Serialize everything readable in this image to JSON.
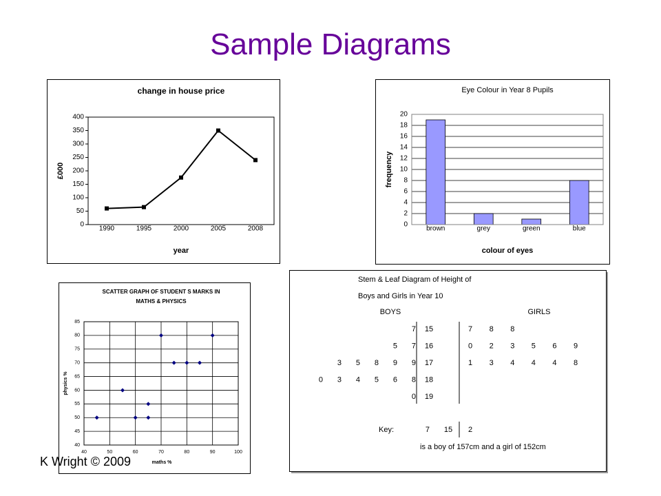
{
  "title": "Sample Diagrams",
  "footer": "K Wright © 2009",
  "chart_data": [
    {
      "type": "line",
      "title": "change in house price",
      "x_label": "year",
      "y_label": "£000",
      "categories": [
        "1990",
        "1995",
        "2000",
        "2005",
        "2008"
      ],
      "values": [
        60,
        65,
        175,
        350,
        240
      ],
      "color": "#000000",
      "ylim": [
        0,
        400
      ],
      "yticks": [
        0,
        50,
        100,
        150,
        200,
        250,
        300,
        350,
        400
      ],
      "grid": false
    },
    {
      "type": "bar",
      "title": "Eye Colour in Year 8 Pupils",
      "x_label": "colour of eyes",
      "y_label": "frequency",
      "categories": [
        "brown",
        "grey",
        "green",
        "blue"
      ],
      "values": [
        19,
        2,
        1,
        8
      ],
      "color": "#9999ff",
      "ylim": [
        0,
        20
      ],
      "yticks": [
        0,
        2,
        4,
        6,
        8,
        10,
        12,
        14,
        16,
        18,
        20
      ],
      "grid": true
    },
    {
      "type": "scatter",
      "title": [
        "SCATTER GRAPH OF STUDENT S MARKS IN",
        "MATHS & PHYSICS"
      ],
      "x_label": "maths %",
      "y_label": "physics %",
      "x": [
        45,
        55,
        60,
        65,
        65,
        70,
        75,
        80,
        85,
        90
      ],
      "values": [
        50,
        60,
        50,
        55,
        50,
        80,
        70,
        70,
        70,
        80
      ],
      "color": "#000080",
      "xlim": [
        40,
        100
      ],
      "xticks": [
        40,
        50,
        60,
        70,
        80,
        90,
        100
      ],
      "ylim": [
        40,
        85
      ],
      "yticks": [
        40,
        45,
        50,
        55,
        60,
        65,
        70,
        75,
        80,
        85
      ],
      "grid": true
    }
  ],
  "stem_leaf": {
    "title": [
      "Stem & Leaf Diagram of Height of",
      "Boys and Girls in Year 10"
    ],
    "left_header": "BOYS",
    "right_header": "GIRLS",
    "rows": [
      {
        "boys": [
          7
        ],
        "stem": 15,
        "girls": [
          7,
          8,
          8
        ]
      },
      {
        "boys": [
          5,
          7
        ],
        "stem": 16,
        "girls": [
          0,
          2,
          3,
          5,
          6,
          9
        ]
      },
      {
        "boys": [
          3,
          5,
          8,
          9,
          9
        ],
        "stem": 17,
        "girls": [
          1,
          3,
          4,
          4,
          4,
          8
        ]
      },
      {
        "boys": [
          0,
          3,
          4,
          5,
          6,
          8
        ],
        "stem": 18,
        "girls": []
      },
      {
        "boys": [
          0
        ],
        "stem": 19,
        "girls": []
      }
    ],
    "key_label": "Key:",
    "key_boy": 7,
    "key_stem": 15,
    "key_girl": 2,
    "key_text": "is a boy of 157cm and a girl of 152cm"
  }
}
